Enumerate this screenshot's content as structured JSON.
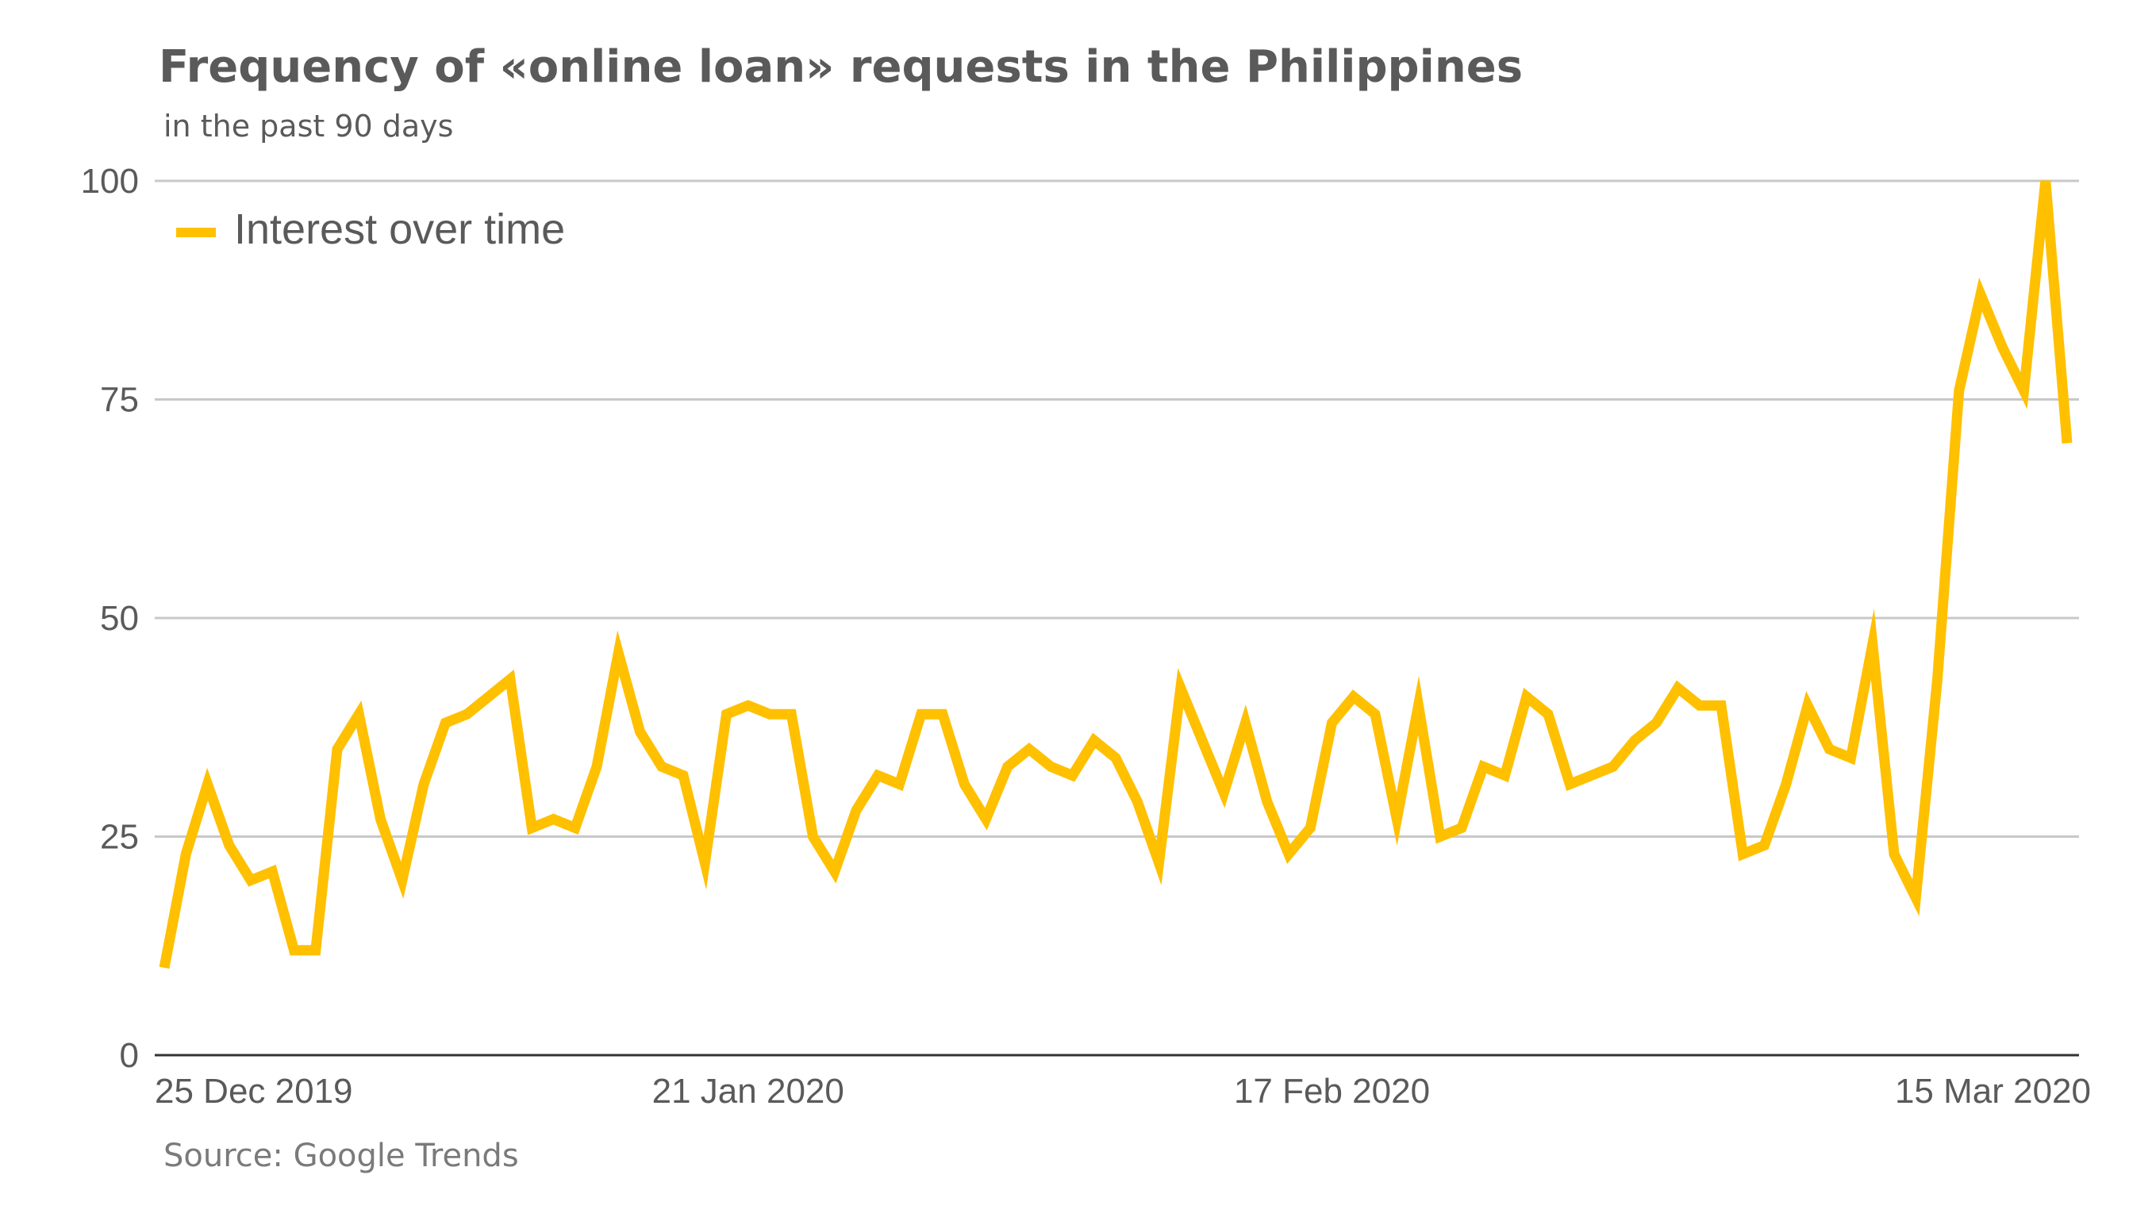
{
  "chart_data": {
    "type": "line",
    "title": "Frequency of «online loan» requests in the Philippines",
    "subtitle": "in the past 90 days",
    "source": "Source: Google Trends",
    "ylim": [
      0,
      100
    ],
    "yticks": [
      "0",
      "25",
      "50",
      "75",
      "100"
    ],
    "xtick_labels": [
      {
        "label": "25 Dec 2019",
        "day": 0
      },
      {
        "label": "21 Jan 2020",
        "day": 27
      },
      {
        "label": "17 Feb 2020",
        "day": 54
      },
      {
        "label": "15 Mar 2020",
        "day": 81
      }
    ],
    "grid": true,
    "legend_position": "top-left",
    "series": [
      {
        "name": "Interest over time",
        "color": "#FFC000",
        "values": [
          10,
          23,
          31,
          24,
          20,
          21,
          12,
          12,
          35,
          39,
          27,
          20,
          31,
          38,
          39,
          41,
          43,
          26,
          27,
          26,
          33,
          46,
          37,
          33,
          32,
          22,
          39,
          40,
          39,
          39,
          25,
          21,
          28,
          32,
          31,
          39,
          39,
          31,
          27,
          33,
          35,
          33,
          32,
          36,
          34,
          29,
          22,
          42,
          36,
          30,
          38,
          29,
          23,
          26,
          38,
          41,
          39,
          27,
          40,
          25,
          26,
          33,
          32,
          41,
          39,
          31,
          32,
          33,
          36,
          38,
          42,
          40,
          40,
          23,
          24,
          31,
          40,
          35,
          34,
          47,
          23,
          18,
          43,
          76,
          87,
          81,
          76,
          100,
          70
        ]
      }
    ]
  }
}
